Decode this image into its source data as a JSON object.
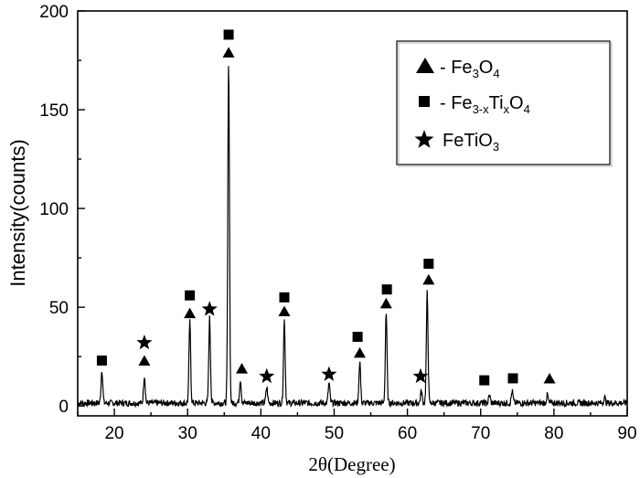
{
  "chart_data": {
    "type": "line",
    "title": "",
    "xlabel": "2θ(Degree)",
    "ylabel": "Intensity(counts)",
    "xlim": [
      15,
      90
    ],
    "ylim": [
      -5,
      200
    ],
    "xticks": [
      20,
      30,
      40,
      50,
      60,
      70,
      80,
      90
    ],
    "yticks": [
      0,
      50,
      100,
      150,
      200
    ],
    "legend": {
      "placement": "top-right",
      "entries": [
        {
          "symbol": "triangle",
          "prefix": "- Fe",
          "sub1": "3",
          "mid": "O",
          "sub2": "4",
          "suffix": ""
        },
        {
          "symbol": "square",
          "prefix": "- Fe",
          "sub1": "3-x",
          "mid": "Ti",
          "sub2": "x",
          "suffix": "O",
          "sub3": "4"
        },
        {
          "symbol": "star",
          "prefix": "FeTiO",
          "sub1": "3",
          "mid": "",
          "sub2": "",
          "suffix": ""
        }
      ]
    },
    "peaks": [
      {
        "x": 18.3,
        "y": 17
      },
      {
        "x": 24.1,
        "y": 14
      },
      {
        "x": 30.3,
        "y": 41
      },
      {
        "x": 33.0,
        "y": 43
      },
      {
        "x": 35.6,
        "y": 172
      },
      {
        "x": 37.2,
        "y": 12
      },
      {
        "x": 40.8,
        "y": 8
      },
      {
        "x": 43.2,
        "y": 42
      },
      {
        "x": 49.3,
        "y": 10
      },
      {
        "x": 53.5,
        "y": 21
      },
      {
        "x": 57.1,
        "y": 46
      },
      {
        "x": 61.9,
        "y": 6
      },
      {
        "x": 62.7,
        "y": 56
      },
      {
        "x": 71.2,
        "y": 4
      },
      {
        "x": 74.3,
        "y": 6
      },
      {
        "x": 79.1,
        "y": 4
      },
      {
        "x": 86.9,
        "y": 3
      }
    ],
    "baseline": 1.5,
    "markers": [
      {
        "type": "square",
        "x": 18.3,
        "y": 23
      },
      {
        "type": "star",
        "x": 24.1,
        "y": 32
      },
      {
        "type": "triangle",
        "x": 24.1,
        "y": 23
      },
      {
        "type": "square",
        "x": 30.3,
        "y": 56
      },
      {
        "type": "triangle",
        "x": 30.3,
        "y": 47
      },
      {
        "type": "star",
        "x": 33.0,
        "y": 49
      },
      {
        "type": "square",
        "x": 35.6,
        "y": 188
      },
      {
        "type": "triangle",
        "x": 35.6,
        "y": 179
      },
      {
        "type": "triangle",
        "x": 37.4,
        "y": 19
      },
      {
        "type": "star",
        "x": 40.8,
        "y": 15
      },
      {
        "type": "square",
        "x": 43.2,
        "y": 55
      },
      {
        "type": "triangle",
        "x": 43.2,
        "y": 48
      },
      {
        "type": "star",
        "x": 49.3,
        "y": 16
      },
      {
        "type": "square",
        "x": 53.2,
        "y": 35
      },
      {
        "type": "triangle",
        "x": 53.5,
        "y": 27
      },
      {
        "type": "square",
        "x": 57.2,
        "y": 59
      },
      {
        "type": "triangle",
        "x": 57.1,
        "y": 52
      },
      {
        "type": "star",
        "x": 61.8,
        "y": 15
      },
      {
        "type": "square",
        "x": 62.9,
        "y": 72
      },
      {
        "type": "triangle",
        "x": 62.9,
        "y": 64
      },
      {
        "type": "square",
        "x": 70.5,
        "y": 13
      },
      {
        "type": "square",
        "x": 74.4,
        "y": 14
      },
      {
        "type": "triangle",
        "x": 79.4,
        "y": 14
      }
    ]
  }
}
